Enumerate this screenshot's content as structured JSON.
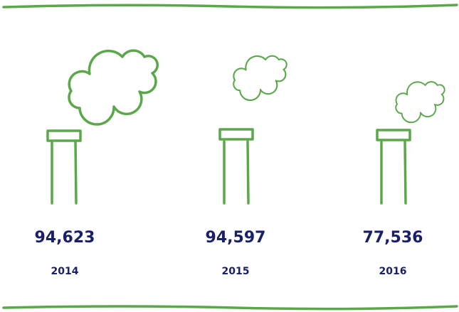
{
  "items": [
    {
      "value": "94,623",
      "year": "2014"
    },
    {
      "value": "94,597",
      "year": "2015"
    },
    {
      "value": "77,536",
      "year": "2016"
    }
  ]
}
